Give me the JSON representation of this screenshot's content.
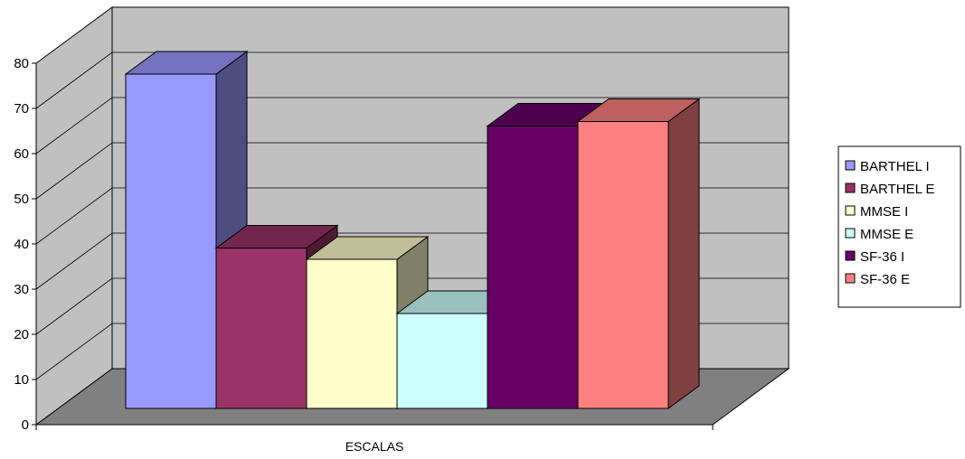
{
  "chart_data": {
    "type": "bar",
    "style": "3d-clustered-column",
    "categories": [
      "ESCALAS"
    ],
    "xlabel": "ESCALAS",
    "ylabel": "",
    "ylim": [
      0,
      80
    ],
    "yticks": [
      0,
      10,
      20,
      30,
      40,
      50,
      60,
      70,
      80
    ],
    "grid": true,
    "legend_position": "right",
    "series": [
      {
        "name": "BARTHEL I",
        "values": [
          74
        ],
        "color": "#9999ff"
      },
      {
        "name": "BARTHEL E",
        "values": [
          35.5
        ],
        "color": "#993366"
      },
      {
        "name": "MMSE I",
        "values": [
          33
        ],
        "color": "#ffffcc"
      },
      {
        "name": "MMSE E",
        "values": [
          21
        ],
        "color": "#ccffff"
      },
      {
        "name": "SF-36 I",
        "values": [
          62.5
        ],
        "color": "#660066"
      },
      {
        "name": "SF-36 E",
        "values": [
          63.5
        ],
        "color": "#ff8080"
      }
    ],
    "wall_color": "#c0c0c0",
    "floor_color": "#808080"
  }
}
